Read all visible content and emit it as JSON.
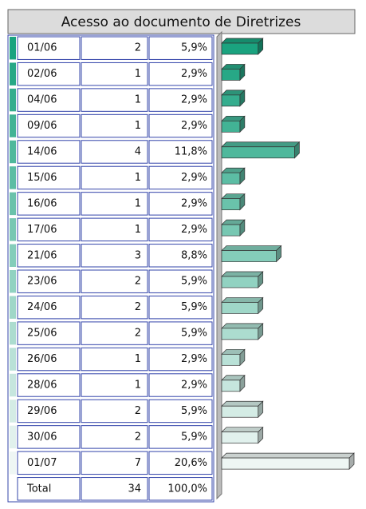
{
  "chart_data": {
    "type": "bar",
    "orientation": "horizontal",
    "title": "Acesso ao documento de Diretrizes",
    "categories": [
      "01/06",
      "02/06",
      "04/06",
      "09/06",
      "14/06",
      "15/06",
      "16/06",
      "17/06",
      "21/06",
      "23/06",
      "24/06",
      "25/06",
      "26/06",
      "28/06",
      "29/06",
      "30/06",
      "01/07"
    ],
    "values": [
      2,
      1,
      1,
      1,
      4,
      1,
      1,
      1,
      3,
      2,
      2,
      2,
      1,
      1,
      2,
      2,
      7
    ],
    "percent": [
      5.9,
      2.9,
      2.9,
      2.9,
      11.8,
      2.9,
      2.9,
      2.9,
      8.8,
      5.9,
      5.9,
      5.9,
      2.9,
      2.9,
      5.9,
      5.9,
      20.6
    ],
    "percent_labels": [
      "5,9%",
      "2,9%",
      "2,9%",
      "2,9%",
      "11,8%",
      "2,9%",
      "2,9%",
      "2,9%",
      "8,8%",
      "5,9%",
      "5,9%",
      "5,9%",
      "2,9%",
      "2,9%",
      "5,9%",
      "5,9%",
      "20,6%"
    ],
    "total_label": "Total",
    "total": 34,
    "total_percent": 100,
    "total_percent_label": "100,0%",
    "color_start": "#1aa37f",
    "color_end": "#eef6f4"
  }
}
